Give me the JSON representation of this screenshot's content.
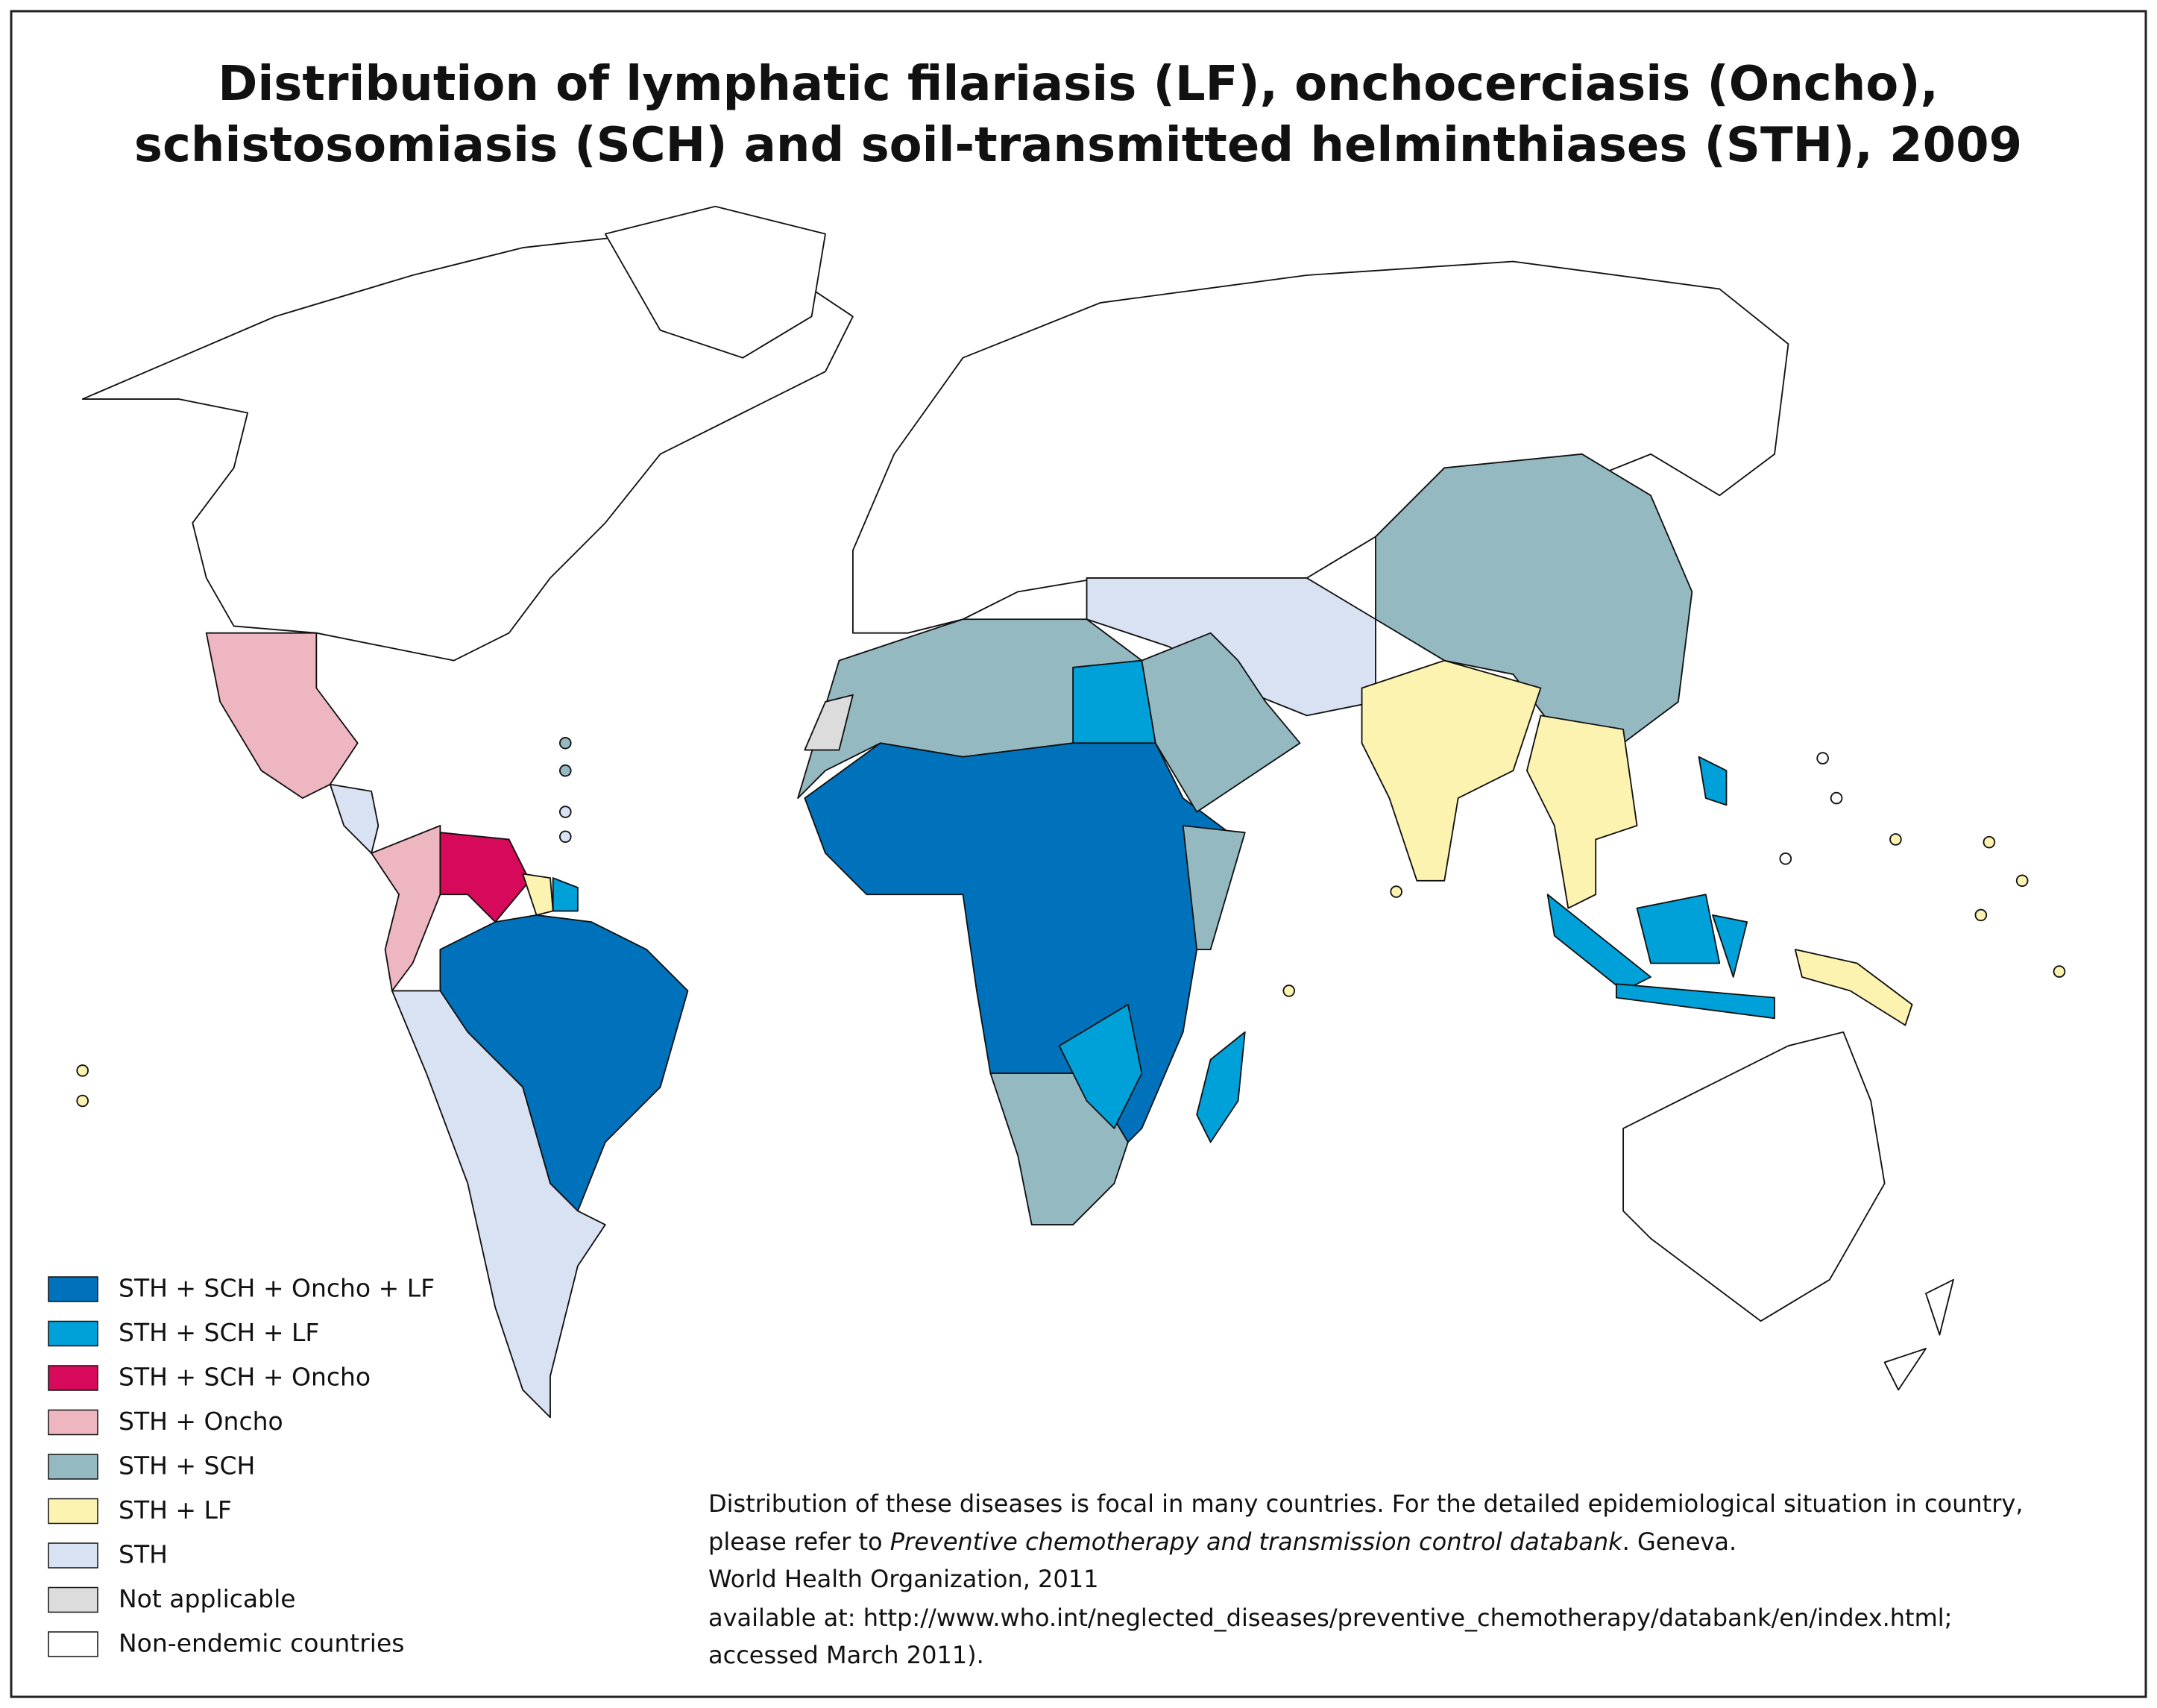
{
  "title": {
    "line1": "Distribution of lymphatic filariasis (LF), onchocerciasis (Oncho),",
    "line2": "schistosomiasis (SCH) and soil-transmitted helminthiases (STH), 2009"
  },
  "legend": [
    {
      "label": "STH + SCH + Oncho + LF",
      "color": "#0072bc"
    },
    {
      "label": "STH + SCH + LF",
      "color": "#00a0d8"
    },
    {
      "label": "STH + SCH + Oncho",
      "color": "#d7095b"
    },
    {
      "label": "STH + Oncho",
      "color": "#eeb6c0"
    },
    {
      "label": "STH + SCH",
      "color": "#94b9c1"
    },
    {
      "label": "STH + LF",
      "color": "#fdf3b0"
    },
    {
      "label": "STH",
      "color": "#d9e2f2"
    },
    {
      "label": "Not applicable",
      "color": "#dcdcdc"
    },
    {
      "label": "Non-endemic countries",
      "color": "#ffffff"
    }
  ],
  "note": {
    "line1": "Distribution of these diseases is focal in many countries. For the detailed epidemiological situation in country,",
    "line2_prefix": "please refer to ",
    "line2_italic": "Preventive chemotherapy and transmission control databank",
    "line2_suffix": ". Geneva.",
    "line3": "World Health Organization, 2011",
    "line4": "available at: http://www.who.int/neglected_diseases/preventive_chemotherapy/databank/en/index.html;",
    "line5": "accessed March 2011)."
  }
}
